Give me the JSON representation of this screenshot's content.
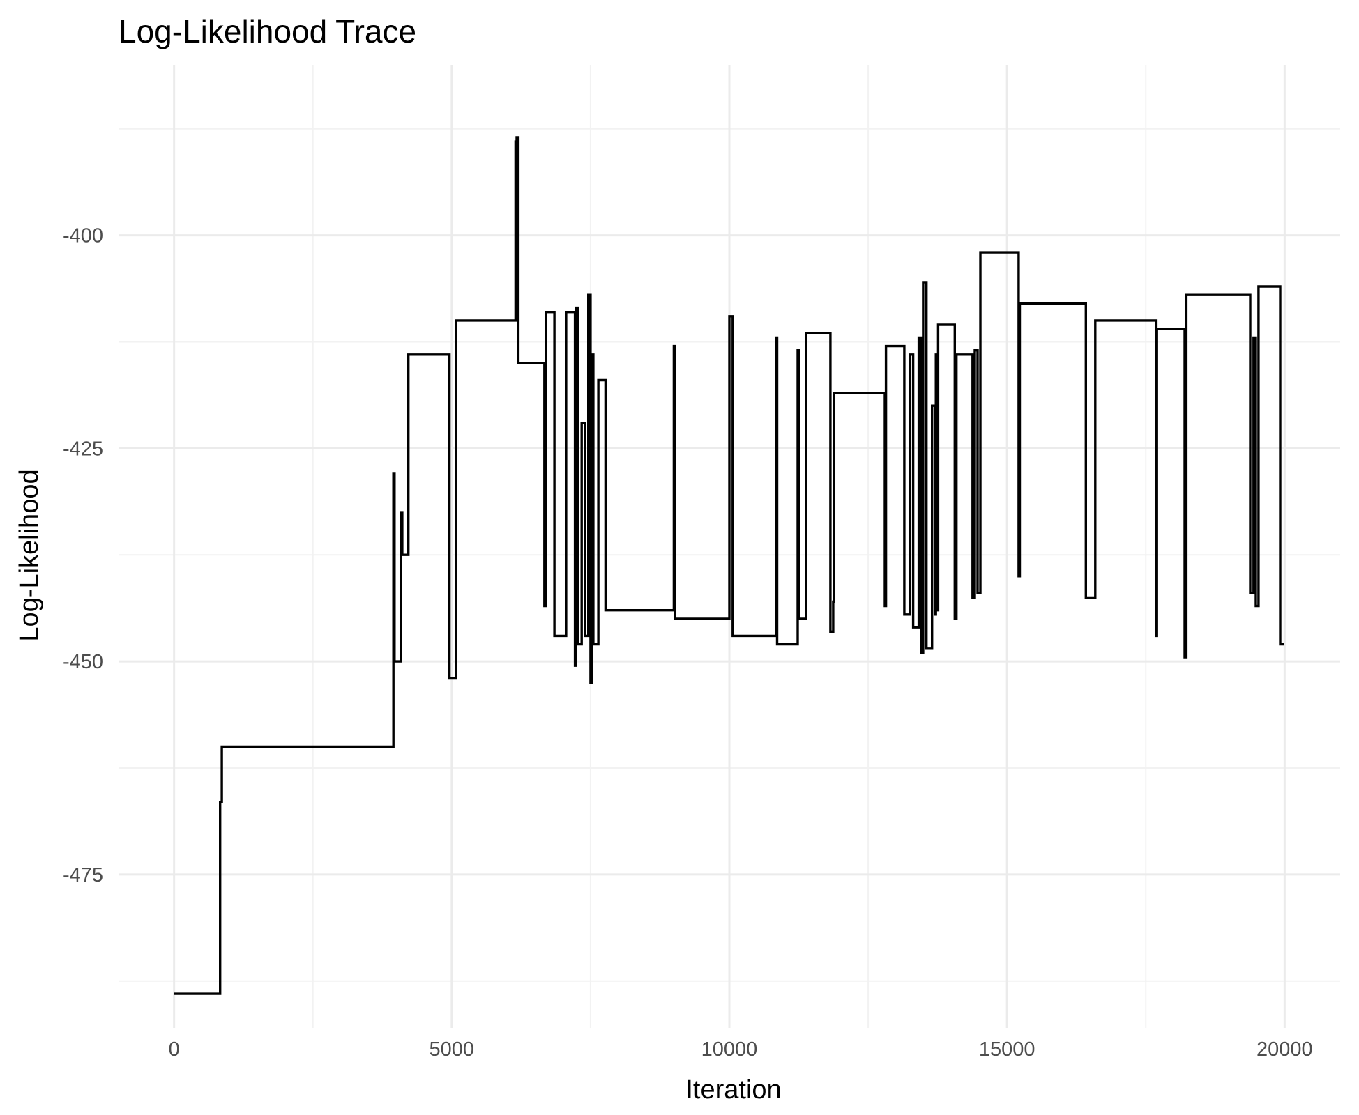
{
  "chart_data": {
    "type": "line",
    "title": "Log-Likelihood Trace",
    "xlabel": "Iteration",
    "ylabel": "Log-Likelihood",
    "xlim": [
      -1000,
      21000
    ],
    "ylim": [
      -493,
      -380
    ],
    "x_ticks": [
      0,
      5000,
      10000,
      15000,
      20000
    ],
    "x_tick_labels": [
      "0",
      "5000",
      "10000",
      "15000",
      "20000"
    ],
    "x_minor_ticks": [
      2500,
      7500,
      12500,
      17500
    ],
    "y_ticks": [
      -400,
      -425,
      -450,
      -475
    ],
    "y_tick_labels": [
      "-400",
      "-425",
      "-450",
      "-475"
    ],
    "y_minor_ticks": [
      -387.5,
      -412.5,
      -437.5,
      -462.5,
      -487.5
    ],
    "grid": true,
    "legend": "none",
    "line_color": "#000000",
    "series": [
      {
        "x": [
          0,
          830,
          830,
          860,
          860,
          3950,
          3950,
          3970,
          3970,
          4090,
          4090,
          4110,
          4110,
          4220,
          4220,
          4960,
          4960,
          5080,
          5080,
          6150,
          6150,
          6170,
          6170,
          6200,
          6200,
          6670,
          6670,
          6700,
          6700,
          6850,
          6850,
          7060,
          7060,
          7220,
          7220,
          7240,
          7240,
          7270,
          7270,
          7340,
          7340,
          7400,
          7400,
          7460,
          7460,
          7500,
          7500,
          7530,
          7530,
          7550,
          7550,
          7640,
          7640,
          7770,
          7770,
          9000,
          9000,
          9020,
          9020,
          10000,
          10000,
          10060,
          10060,
          10840,
          10840,
          10860,
          10860,
          11230,
          11230,
          11260,
          11260,
          11380,
          11380,
          11820,
          11820,
          11870,
          11870,
          11880,
          11880,
          12800,
          12800,
          12820,
          12820,
          13150,
          13150,
          13250,
          13250,
          13310,
          13310,
          13410,
          13410,
          13460,
          13460,
          13490,
          13490,
          13550,
          13550,
          13650,
          13650,
          13700,
          13700,
          13720,
          13720,
          13740,
          13740,
          13760,
          13760,
          14060,
          14060,
          14090,
          14090,
          14380,
          14380,
          14420,
          14420,
          14470,
          14470,
          14520,
          14520,
          15210,
          15210,
          15230,
          15230,
          16420,
          16420,
          16590,
          16590,
          17690,
          17690,
          17700,
          17700,
          18200,
          18200,
          18230,
          18230,
          19380,
          19380,
          19440,
          19440,
          19480,
          19480,
          19530,
          19530,
          19920,
          19920,
          19990
        ],
        "y": [
          -489,
          -489,
          -466.5,
          -466.5,
          -460,
          -460,
          -428,
          -428,
          -450,
          -450,
          -432.5,
          -432.5,
          -437.5,
          -437.5,
          -414,
          -414,
          -452,
          -452,
          -410,
          -410,
          -389,
          -389,
          -388.5,
          -388.5,
          -415,
          -415,
          -443.5,
          -443.5,
          -409,
          -409,
          -447,
          -447,
          -409,
          -409,
          -450.5,
          -450.5,
          -408.5,
          -408.5,
          -448,
          -448,
          -422,
          -422,
          -447,
          -447,
          -407,
          -407,
          -452.5,
          -452.5,
          -414,
          -414,
          -448,
          -448,
          -417,
          -417,
          -444,
          -444,
          -413,
          -413,
          -445,
          -445,
          -409.5,
          -409.5,
          -447,
          -447,
          -412,
          -412,
          -448,
          -448,
          -413.5,
          -413.5,
          -445,
          -445,
          -411.5,
          -411.5,
          -446.5,
          -446.5,
          -443,
          -443,
          -418.5,
          -418.5,
          -443.5,
          -443.5,
          -413,
          -413,
          -444.5,
          -444.5,
          -414,
          -414,
          -446,
          -446,
          -412,
          -412,
          -449,
          -449,
          -405.5,
          -405.5,
          -448.5,
          -448.5,
          -420,
          -420,
          -444.5,
          -444.5,
          -414,
          -414,
          -444,
          -444,
          -410.5,
          -410.5,
          -445,
          -445,
          -414,
          -414,
          -442.5,
          -442.5,
          -413.5,
          -413.5,
          -442,
          -442,
          -402,
          -402,
          -440,
          -440,
          -408,
          -408,
          -442.5,
          -442.5,
          -410,
          -410,
          -447,
          -447,
          -411,
          -411,
          -449.5,
          -449.5,
          -407,
          -407,
          -442,
          -442,
          -412,
          -412,
          -443.5,
          -443.5,
          -406,
          -406,
          -448,
          -448
        ]
      }
    ]
  }
}
